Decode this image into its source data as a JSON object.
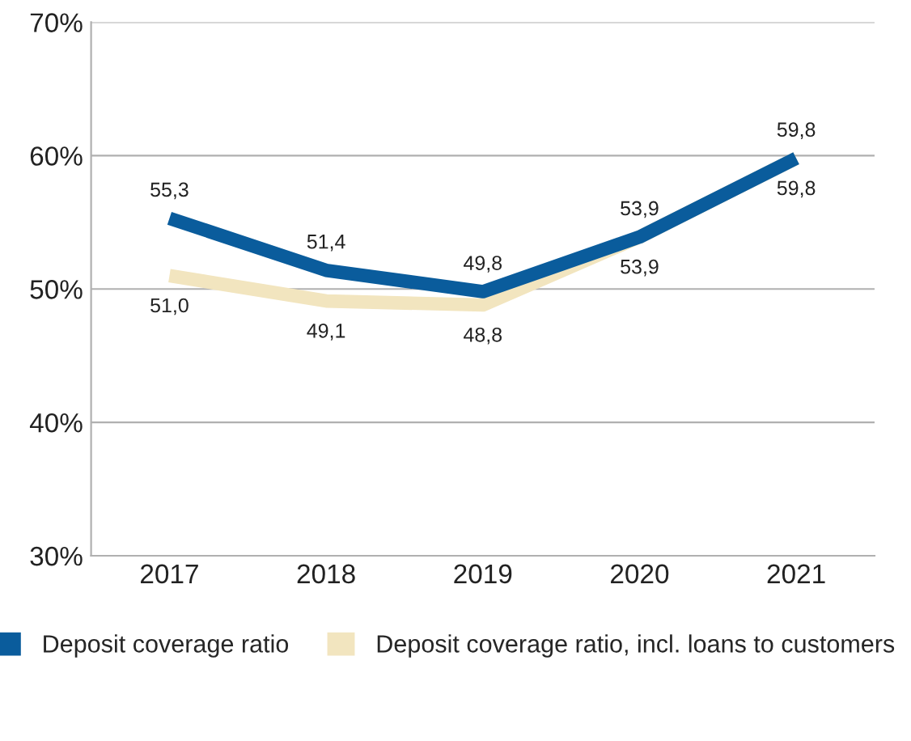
{
  "chart_data": {
    "type": "line",
    "categories": [
      "2017",
      "2018",
      "2019",
      "2020",
      "2021"
    ],
    "series": [
      {
        "name": "Deposit coverage ratio, incl. loans to customers",
        "color": "#f2e5bf",
        "values": [
          51.0,
          49.1,
          48.8,
          53.9,
          59.8
        ],
        "value_labels": [
          "51,0",
          "49,1",
          "48,8",
          "53,9",
          "59,8"
        ]
      },
      {
        "name": "Deposit coverage ratio",
        "color": "#0a5c9c",
        "values": [
          55.3,
          51.4,
          49.8,
          53.9,
          59.8
        ],
        "value_labels": [
          "55,3",
          "51,4",
          "49,8",
          "53,9",
          "59,8"
        ]
      }
    ],
    "ylim": [
      30,
      70
    ],
    "yticks": [
      {
        "value": 30,
        "label": "30%"
      },
      {
        "value": 40,
        "label": "40%"
      },
      {
        "value": 50,
        "label": "50%"
      },
      {
        "value": 60,
        "label": "60%"
      },
      {
        "value": 70,
        "label": "70%"
      }
    ],
    "grid": "y",
    "legend": "bottom",
    "marker": "none",
    "line_style": "solid"
  }
}
